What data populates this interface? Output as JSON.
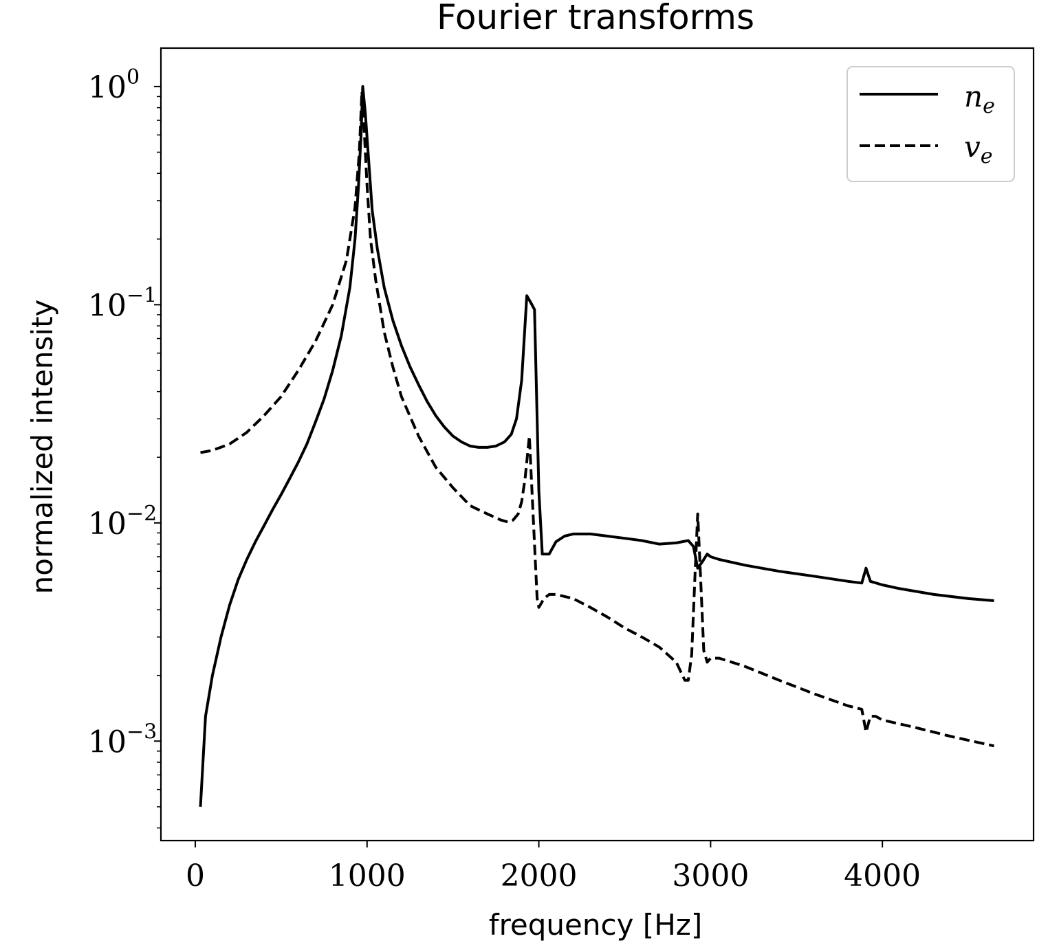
{
  "chart_data": {
    "type": "line",
    "title": "Fourier transforms",
    "xlabel": "frequency [Hz]",
    "ylabel": "normalized intensity",
    "xlim": [
      -200,
      4880
    ],
    "ylim": [
      0.00035,
      1.5
    ],
    "yscale": "log",
    "x_ticks": [
      {
        "value": 0,
        "label": "0"
      },
      {
        "value": 1000,
        "label": "1000"
      },
      {
        "value": 2000,
        "label": "2000"
      },
      {
        "value": 3000,
        "label": "3000"
      },
      {
        "value": 4000,
        "label": "4000"
      }
    ],
    "y_ticks": [
      {
        "value": 1,
        "base": "10",
        "exp": "0"
      },
      {
        "value": 0.1,
        "base": "10",
        "exp": "−1"
      },
      {
        "value": 0.01,
        "base": "10",
        "exp": "−2"
      },
      {
        "value": 0.001,
        "base": "10",
        "exp": "−3"
      }
    ],
    "grid": false,
    "legend_position": "top-right",
    "color": "#000000",
    "series": [
      {
        "name": "n_e",
        "legend_base": "n",
        "legend_sub": "e",
        "style": "solid",
        "x": [
          30,
          60,
          100,
          150,
          200,
          250,
          300,
          350,
          400,
          450,
          500,
          550,
          600,
          650,
          700,
          750,
          800,
          850,
          900,
          930,
          950,
          965,
          975,
          990,
          1010,
          1030,
          1060,
          1100,
          1150,
          1200,
          1250,
          1300,
          1350,
          1400,
          1450,
          1500,
          1550,
          1600,
          1650,
          1700,
          1750,
          1800,
          1840,
          1870,
          1900,
          1930,
          1960,
          1975,
          1990,
          2000,
          2020,
          2060,
          2100,
          2150,
          2200,
          2300,
          2400,
          2500,
          2600,
          2700,
          2800,
          2870,
          2900,
          2925,
          2950,
          2980,
          3000,
          3050,
          3200,
          3400,
          3600,
          3800,
          3880,
          3905,
          3930,
          4000,
          4100,
          4300,
          4500,
          4650
        ],
        "y": [
          0.0005,
          0.0013,
          0.002,
          0.003,
          0.0042,
          0.0055,
          0.0068,
          0.0082,
          0.0097,
          0.0115,
          0.0135,
          0.016,
          0.019,
          0.023,
          0.029,
          0.037,
          0.05,
          0.072,
          0.12,
          0.2,
          0.35,
          0.6,
          1.0,
          0.75,
          0.45,
          0.27,
          0.18,
          0.12,
          0.085,
          0.065,
          0.052,
          0.043,
          0.036,
          0.031,
          0.0275,
          0.025,
          0.0235,
          0.0225,
          0.0222,
          0.0222,
          0.0225,
          0.0235,
          0.0255,
          0.03,
          0.045,
          0.11,
          0.1,
          0.095,
          0.03,
          0.014,
          0.0072,
          0.0072,
          0.0082,
          0.0087,
          0.0089,
          0.0089,
          0.0087,
          0.0085,
          0.0083,
          0.008,
          0.0081,
          0.0083,
          0.0078,
          0.0062,
          0.0066,
          0.0072,
          0.007,
          0.0068,
          0.0064,
          0.006,
          0.0057,
          0.0054,
          0.0053,
          0.0062,
          0.0054,
          0.0052,
          0.005,
          0.0047,
          0.0045,
          0.0044
        ]
      },
      {
        "name": "v_e",
        "legend_base": "v",
        "legend_sub": "e",
        "style": "dashed",
        "x": [
          30,
          100,
          200,
          300,
          400,
          500,
          600,
          700,
          800,
          880,
          930,
          955,
          970,
          985,
          1000,
          1020,
          1050,
          1100,
          1150,
          1200,
          1300,
          1400,
          1500,
          1600,
          1700,
          1780,
          1820,
          1850,
          1880,
          1900,
          1920,
          1945,
          1960,
          1975,
          1990,
          2000,
          2030,
          2060,
          2100,
          2200,
          2300,
          2400,
          2500,
          2600,
          2700,
          2800,
          2850,
          2870,
          2890,
          2910,
          2925,
          2940,
          2960,
          2980,
          3000,
          3050,
          3200,
          3400,
          3600,
          3800,
          3880,
          3905,
          3930,
          3960,
          4000,
          4200,
          4400,
          4650
        ],
        "y": [
          0.021,
          0.0215,
          0.023,
          0.026,
          0.031,
          0.038,
          0.05,
          0.068,
          0.1,
          0.16,
          0.28,
          0.5,
          0.95,
          0.6,
          0.35,
          0.2,
          0.13,
          0.075,
          0.052,
          0.038,
          0.025,
          0.018,
          0.0145,
          0.012,
          0.011,
          0.0103,
          0.0101,
          0.0103,
          0.011,
          0.0125,
          0.016,
          0.025,
          0.014,
          0.008,
          0.0045,
          0.0041,
          0.0045,
          0.0047,
          0.0047,
          0.0045,
          0.0041,
          0.0037,
          0.0033,
          0.003,
          0.0027,
          0.0023,
          0.0019,
          0.0019,
          0.0025,
          0.006,
          0.011,
          0.006,
          0.0026,
          0.0023,
          0.0024,
          0.0024,
          0.0022,
          0.0019,
          0.00165,
          0.00145,
          0.0014,
          0.0011,
          0.0013,
          0.0013,
          0.00125,
          0.00115,
          0.00105,
          0.00095
        ]
      }
    ]
  }
}
